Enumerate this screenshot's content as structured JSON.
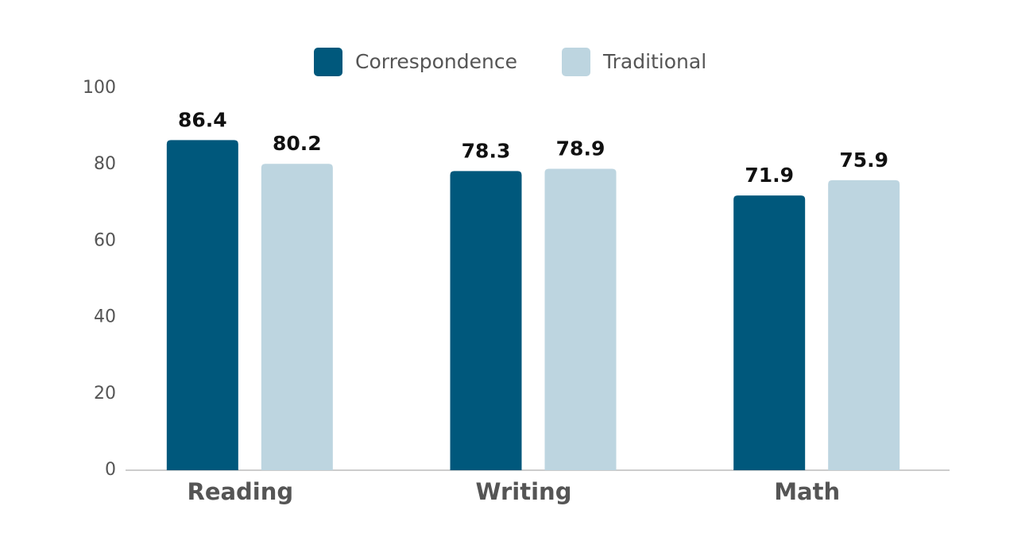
{
  "chart_data": {
    "type": "bar",
    "categories": [
      "Reading",
      "Writing",
      "Math"
    ],
    "series": [
      {
        "name": "Correspondence",
        "color": "#00587c",
        "values": [
          86.4,
          78.3,
          71.9
        ]
      },
      {
        "name": "Traditional",
        "color": "#bdd5e0",
        "values": [
          80.2,
          78.9,
          75.9
        ]
      }
    ],
    "ylim": [
      0,
      100
    ],
    "yticks": [
      0,
      20,
      40,
      60,
      80,
      100
    ],
    "grid": false,
    "legend": "top"
  }
}
